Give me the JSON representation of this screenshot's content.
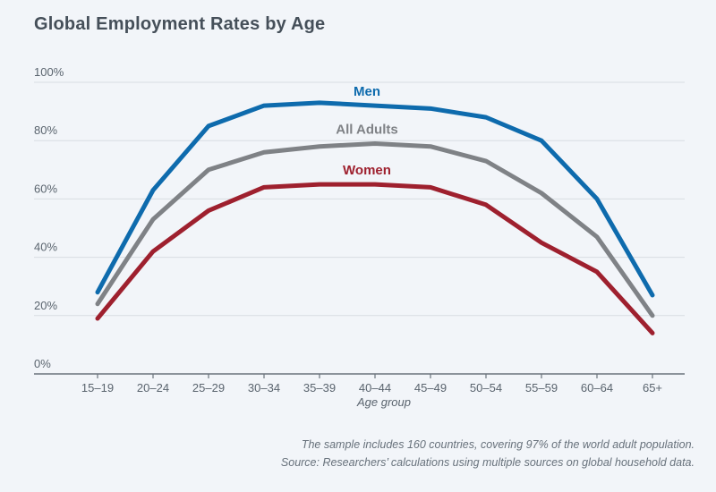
{
  "page": {
    "title": "Global Employment Rates by Age",
    "footnote_line1": "The sample includes 160 countries, covering 97% of the world adult population.",
    "footnote_line2": "Source: Researchers’ calculations using multiple sources on global household data."
  },
  "chart_data": {
    "type": "line",
    "title": "Global Employment Rates by Age",
    "categories": [
      "15–19",
      "20–24",
      "25–29",
      "30–34",
      "35–39",
      "40–44",
      "45–49",
      "50–54",
      "55–59",
      "60–64",
      "65+"
    ],
    "series": [
      {
        "name": "Men",
        "color": "#0e6bad",
        "values": [
          28,
          63,
          85,
          92,
          93,
          92,
          91,
          88,
          80,
          60,
          27
        ]
      },
      {
        "name": "All Adults",
        "color": "#7f8286",
        "values": [
          24,
          53,
          70,
          76,
          78,
          79,
          78,
          73,
          62,
          47,
          20
        ]
      },
      {
        "name": "Women",
        "color": "#9e202e",
        "values": [
          19,
          42,
          56,
          64,
          65,
          65,
          64,
          58,
          45,
          35,
          14
        ]
      }
    ],
    "xlabel": "Age group",
    "ylabel": "",
    "ylim": [
      0,
      100
    ],
    "yticks": [
      0,
      20,
      40,
      60,
      80,
      100
    ],
    "ytick_suffix": "%",
    "grid": true,
    "legend": "inline-labels-above-lines",
    "colors": {
      "background": "#f2f5f9",
      "gridline": "#d8dde2",
      "axis": "#6a737c",
      "tick_label": "#5a646e",
      "title": "#454f59",
      "footnote": "#67717b"
    }
  }
}
